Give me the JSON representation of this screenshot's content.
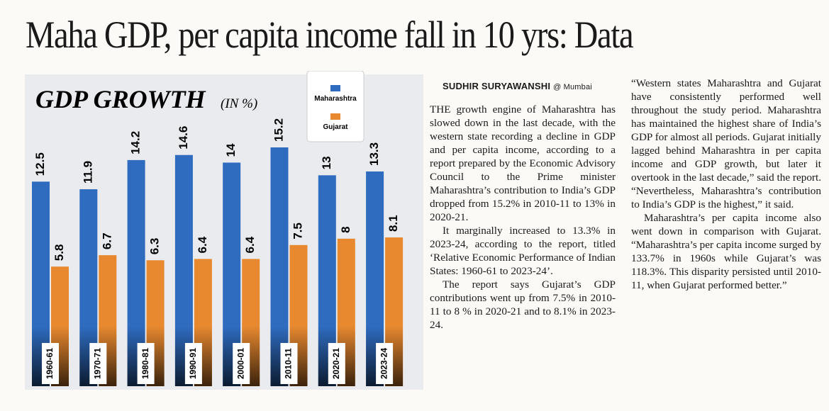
{
  "headline": "Maha GDP, per capita income fall in 10 yrs: Data",
  "chart_data": {
    "type": "bar",
    "title": "GDP GROWTH",
    "subtitle": "(IN %)",
    "categories": [
      "1960-61",
      "1970-71",
      "1980-81",
      "1990-91",
      "2000-01",
      "2010-11",
      "2020-21",
      "2023-24"
    ],
    "series": [
      {
        "name": "Maharashtra",
        "color": "#2f6cc0",
        "values": [
          12.5,
          11.9,
          14.2,
          14.6,
          14,
          15.2,
          13,
          13.3
        ]
      },
      {
        "name": "Gujarat",
        "color": "#e8892f",
        "values": [
          5.8,
          6.7,
          6.3,
          6.4,
          6.4,
          7.5,
          8,
          8.1
        ]
      }
    ]
  },
  "byline": {
    "name": "SUDHIR SURYAWANSHI",
    "place": "@ Mumbai"
  },
  "article": {
    "paragraphs": [
      "THE growth engine of Maharashtra has slowed down in the last decade, with the western state recording a decline in GDP and per capita income, according to a report prepared by the Economic Advisory Council to the Prime minister Maharashtra’s contribution to India’s GDP dropped from 15.2% in 2010-11 to 13% in 2020-21.",
      "It marginally increased to 13.3% in 2023-24, according to the report, titled ‘Relative Economic Performance of Indian States: 1960-61 to 2023-24’.",
      "The report says Gujarat’s GDP contributions went up from 7.5% in 2010-11 to 8 % in 2020-21 and to 8.1% in 2023-24.",
      "“Western states Maharashtra and Gujarat have consistently performed well throughout the study period. Maharashtra has maintained the highest share of India’s GDP for almost all periods. Gujarat initially lagged behind Maharashtra in per capita income and GDP growth, but later it overtook in the last decade,” said the report. “Nevertheless, Maharashtra’s contribution to India’s GDP is the highest,” it said.",
      "Maharashtra’s per capita income also went down in comparison with Gujarat. “Maharashtra’s per capita income surged by 133.7% in 1960s while Gujarat’s was 118.3%. This disparity persisted until 2010-11, when Gujarat performed better.”"
    ]
  }
}
